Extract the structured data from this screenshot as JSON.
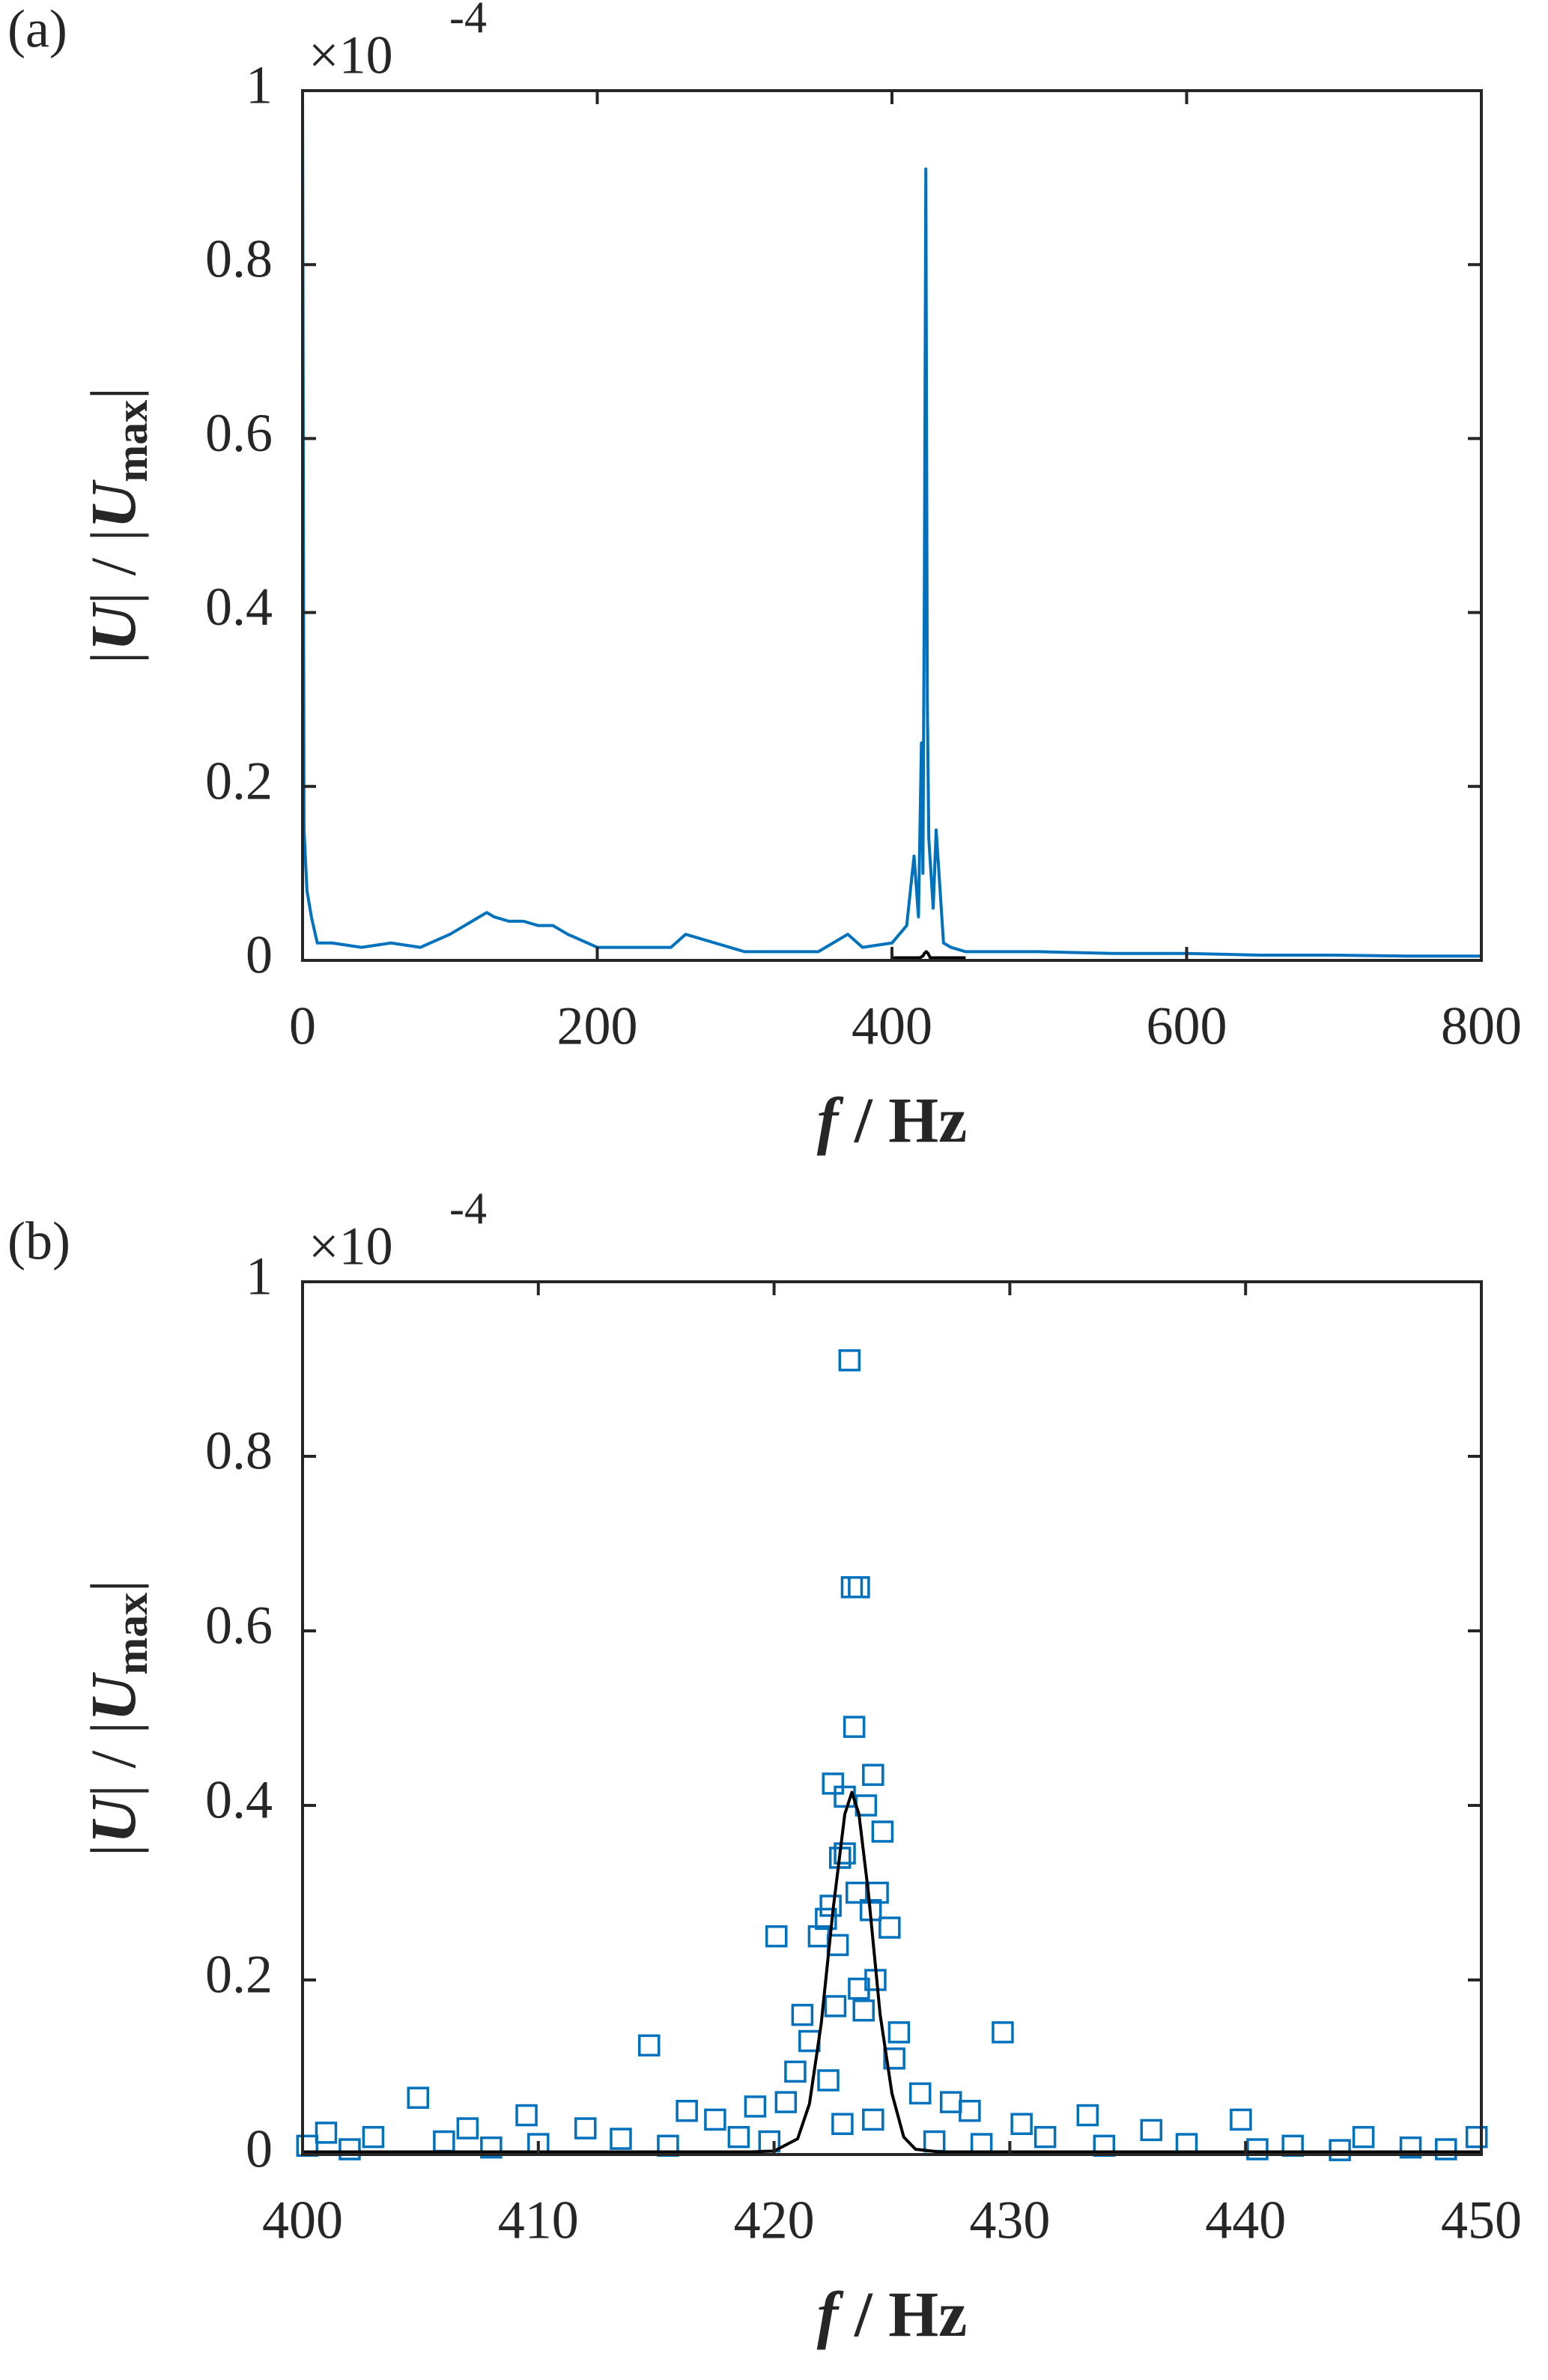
{
  "chart_data": [
    {
      "type": "line",
      "panel_label": "(a)",
      "y_multiplier": "×10",
      "y_exponent": "-4",
      "ylabel_parts": [
        "|",
        "U",
        "| / |",
        "U",
        "max",
        "|"
      ],
      "xlabel_parts": [
        "f",
        " / Hz"
      ],
      "xlim": [
        0,
        800
      ],
      "ylim": [
        0,
        1
      ],
      "xticks": [
        0,
        200,
        400,
        600,
        800
      ],
      "yticks": [
        0,
        0.2,
        0.4,
        0.6,
        0.8,
        1
      ],
      "series": [
        {
          "type": "line",
          "color": "#0072bd",
          "x": [
            0,
            1,
            3,
            6,
            10,
            20,
            40,
            60,
            80,
            100,
            110,
            120,
            125,
            130,
            140,
            150,
            160,
            170,
            180,
            200,
            250,
            260,
            300,
            350,
            370,
            380,
            400,
            410,
            415,
            418,
            420,
            421,
            422,
            423,
            424,
            425,
            428,
            430,
            435,
            440,
            450,
            500,
            550,
            600,
            650,
            700,
            750,
            800
          ],
          "values": [
            1.0,
            0.15,
            0.08,
            0.05,
            0.02,
            0.02,
            0.015,
            0.02,
            0.015,
            0.03,
            0.04,
            0.05,
            0.055,
            0.05,
            0.045,
            0.045,
            0.04,
            0.04,
            0.03,
            0.015,
            0.015,
            0.03,
            0.01,
            0.01,
            0.03,
            0.015,
            0.02,
            0.04,
            0.12,
            0.05,
            0.25,
            0.1,
            0.43,
            0.91,
            0.3,
            0.14,
            0.06,
            0.15,
            0.02,
            0.015,
            0.01,
            0.01,
            0.008,
            0.008,
            0.006,
            0.006,
            0.005,
            0.005
          ]
        },
        {
          "type": "line",
          "color": "#000000",
          "x": [
            400,
            419,
            421,
            422,
            423.3,
            424.5,
            426,
            450
          ],
          "values": [
            0.003,
            0.003,
            0.005,
            0.008,
            0.01,
            0.008,
            0.003,
            0.003
          ]
        }
      ]
    },
    {
      "type": "scatter",
      "panel_label": "(b)",
      "y_multiplier": "×10",
      "y_exponent": "-4",
      "ylabel_parts": [
        "|",
        "U",
        "| / |",
        "U",
        "max",
        "|"
      ],
      "xlabel_parts": [
        "f",
        " / Hz"
      ],
      "xlim": [
        400,
        450
      ],
      "ylim": [
        0,
        1
      ],
      "xticks": [
        400,
        410,
        420,
        430,
        440,
        450
      ],
      "yticks": [
        0,
        0.2,
        0.4,
        0.6,
        0.8,
        1
      ],
      "series": [
        {
          "type": "scatter",
          "color": "#0072bd",
          "x": [
            423.2,
            423.3,
            423.6,
            423.4,
            424.2,
            422.5,
            423,
            423.9,
            424.6,
            423,
            422.8,
            423.5,
            424.4,
            422.4,
            424.1,
            422.2,
            420.1,
            421.9,
            424.9,
            422.7,
            424.3,
            423.6,
            421.2,
            422.6,
            423.8,
            425.3,
            429.7,
            421.5,
            414.7,
            425.1,
            420.9,
            422.3,
            426.2,
            404.9,
            427.5,
            420.5,
            419.2,
            428.3,
            416.3,
            409.5,
            433.3,
            439.8,
            424.2,
            417.5,
            430.5,
            422.9,
            412,
            407,
            436,
            401,
            403,
            445,
            449.8,
            418.5,
            431.5,
            413.5,
            406,
            410,
            426.8,
            437.5,
            442,
            447,
            400.2,
            402,
            408,
            415.5,
            419.8,
            428.8,
            434,
            440.5,
            444,
            448.5
          ],
          "values": [
            0.91,
            0.65,
            0.65,
            0.49,
            0.435,
            0.425,
            0.41,
            0.4,
            0.37,
            0.345,
            0.34,
            0.3,
            0.3,
            0.285,
            0.28,
            0.27,
            0.25,
            0.25,
            0.26,
            0.24,
            0.2,
            0.19,
            0.16,
            0.17,
            0.165,
            0.14,
            0.14,
            0.13,
            0.125,
            0.11,
            0.095,
            0.085,
            0.07,
            0.065,
            0.06,
            0.06,
            0.055,
            0.05,
            0.05,
            0.045,
            0.045,
            0.04,
            0.04,
            0.04,
            0.035,
            0.035,
            0.03,
            0.03,
            0.028,
            0.025,
            0.02,
            0.02,
            0.02,
            0.02,
            0.02,
            0.018,
            0.015,
            0.012,
            0.015,
            0.012,
            0.01,
            0.008,
            0.01,
            0.006,
            0.008,
            0.01,
            0.015,
            0.012,
            0.01,
            0.006,
            0.005,
            0.006
          ]
        },
        {
          "type": "line",
          "color": "#000000",
          "x": [
            400,
            419,
            420,
            421,
            421.5,
            422,
            422.5,
            423,
            423.3,
            423.6,
            424,
            424.5,
            425,
            425.5,
            426,
            427,
            450
          ],
          "values": [
            0.003,
            0.003,
            0.004,
            0.018,
            0.058,
            0.15,
            0.28,
            0.39,
            0.415,
            0.39,
            0.3,
            0.16,
            0.07,
            0.02,
            0.006,
            0.003,
            0.003
          ]
        }
      ]
    }
  ]
}
